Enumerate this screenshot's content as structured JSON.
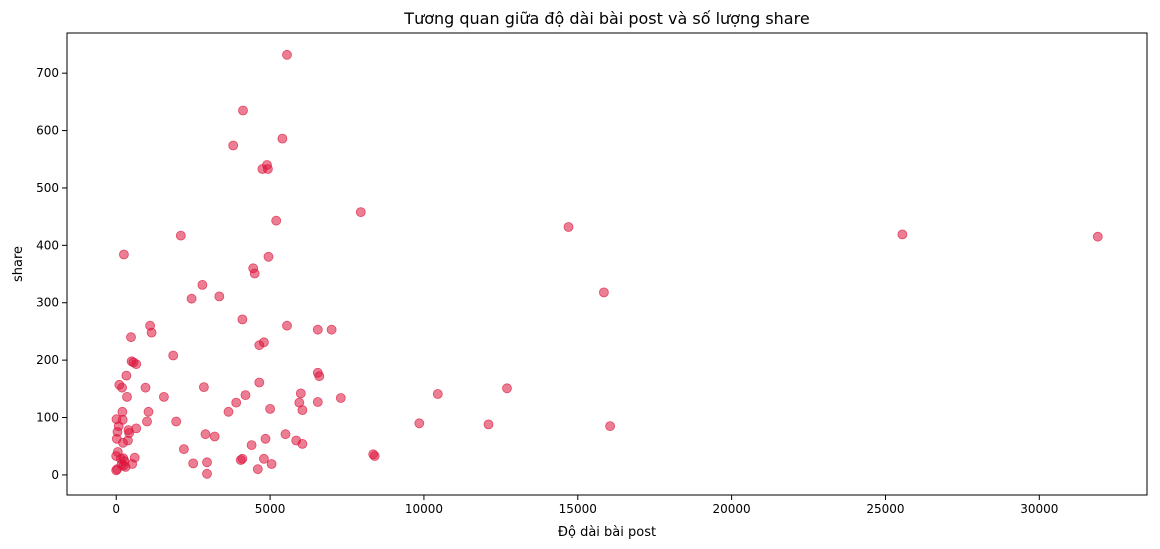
{
  "chart_data": {
    "type": "scatter",
    "title": "Tương quan giữa độ dài bài post và số lượng share",
    "xlabel": "Độ dài bài post",
    "ylabel": "share",
    "xlim": [
      -1600,
      33500
    ],
    "ylim": [
      -35,
      770
    ],
    "xticks": [
      0,
      5000,
      10000,
      15000,
      20000,
      25000,
      30000
    ],
    "yticks": [
      0,
      100,
      200,
      300,
      400,
      500,
      600,
      700
    ],
    "grid": false,
    "marker_color": "#dc143c",
    "marker_opacity": 0.55,
    "points": [
      [
        0,
        8
      ],
      [
        30,
        10
      ],
      [
        50,
        40
      ],
      [
        0,
        33
      ],
      [
        20,
        63
      ],
      [
        40,
        75
      ],
      [
        10,
        97
      ],
      [
        80,
        85
      ],
      [
        100,
        157
      ],
      [
        150,
        28
      ],
      [
        170,
        18
      ],
      [
        190,
        152
      ],
      [
        200,
        110
      ],
      [
        210,
        96
      ],
      [
        220,
        56
      ],
      [
        230,
        29
      ],
      [
        240,
        16
      ],
      [
        250,
        384
      ],
      [
        270,
        24
      ],
      [
        300,
        14
      ],
      [
        330,
        173
      ],
      [
        350,
        136
      ],
      [
        380,
        60
      ],
      [
        400,
        78
      ],
      [
        420,
        73
      ],
      [
        480,
        240
      ],
      [
        500,
        198
      ],
      [
        520,
        19
      ],
      [
        560,
        196
      ],
      [
        600,
        30
      ],
      [
        650,
        193
      ],
      [
        650,
        81
      ],
      [
        950,
        152
      ],
      [
        1000,
        93
      ],
      [
        1050,
        110
      ],
      [
        1100,
        260
      ],
      [
        1150,
        248
      ],
      [
        1550,
        136
      ],
      [
        1850,
        208
      ],
      [
        1950,
        93
      ],
      [
        2100,
        417
      ],
      [
        2200,
        45
      ],
      [
        2450,
        307
      ],
      [
        2500,
        20
      ],
      [
        2800,
        331
      ],
      [
        2850,
        153
      ],
      [
        2900,
        71
      ],
      [
        2950,
        22
      ],
      [
        2950,
        2
      ],
      [
        3200,
        67
      ],
      [
        3350,
        311
      ],
      [
        3650,
        110
      ],
      [
        3800,
        574
      ],
      [
        3900,
        126
      ],
      [
        4050,
        26
      ],
      [
        4100,
        28
      ],
      [
        4100,
        271
      ],
      [
        4120,
        635
      ],
      [
        4200,
        139
      ],
      [
        4400,
        52
      ],
      [
        4450,
        360
      ],
      [
        4500,
        351
      ],
      [
        4600,
        10
      ],
      [
        4650,
        226
      ],
      [
        4650,
        161
      ],
      [
        4750,
        533
      ],
      [
        4800,
        231
      ],
      [
        4800,
        28
      ],
      [
        4850,
        63
      ],
      [
        4900,
        540
      ],
      [
        4930,
        533
      ],
      [
        4950,
        380
      ],
      [
        5000,
        115
      ],
      [
        5050,
        19
      ],
      [
        5200,
        443
      ],
      [
        5400,
        586
      ],
      [
        5500,
        71
      ],
      [
        5550,
        732
      ],
      [
        5550,
        260
      ],
      [
        5850,
        60
      ],
      [
        5950,
        126
      ],
      [
        6000,
        142
      ],
      [
        6050,
        113
      ],
      [
        6050,
        54
      ],
      [
        6550,
        178
      ],
      [
        6550,
        253
      ],
      [
        6600,
        172
      ],
      [
        6550,
        127
      ],
      [
        7000,
        253
      ],
      [
        7300,
        134
      ],
      [
        8350,
        36
      ],
      [
        8400,
        33
      ],
      [
        7950,
        458
      ],
      [
        9850,
        90
      ],
      [
        10450,
        141
      ],
      [
        12100,
        88
      ],
      [
        12700,
        151
      ],
      [
        14700,
        432
      ],
      [
        15850,
        318
      ],
      [
        16050,
        85
      ],
      [
        25550,
        419
      ],
      [
        31900,
        415
      ]
    ]
  }
}
